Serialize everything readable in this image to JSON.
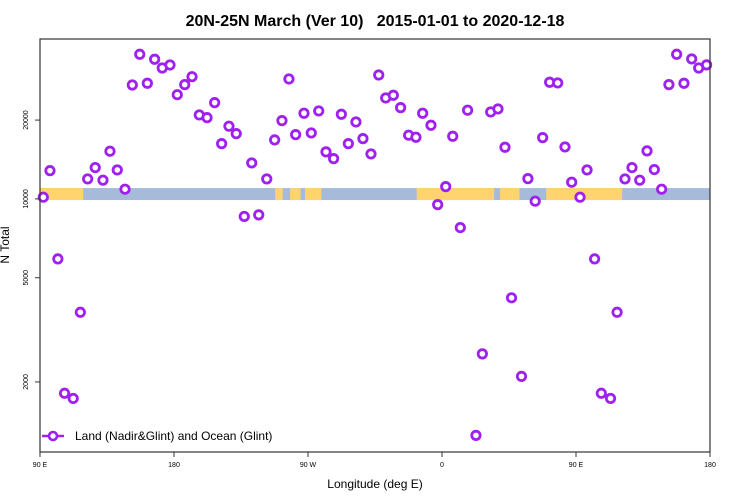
{
  "chart_data": {
    "type": "scatter",
    "title": "20N-25N March (Ver 10)   2015-01-01 to 2020-12-18",
    "xlabel": "Longitude (deg E)",
    "ylabel": "N Total",
    "y_scale": "log",
    "xlim": [
      90,
      540
    ],
    "ylim": [
      1080,
      40800
    ],
    "x_note": "longitude unwrapped: 90E=90, 180=180, 90W=270, 0=360, 90E=450, 180=540",
    "x_ticks": [
      {
        "value": 90,
        "label": "90 E"
      },
      {
        "value": 180,
        "label": "180"
      },
      {
        "value": 270,
        "label": "90 W"
      },
      {
        "value": 360,
        "label": "0"
      },
      {
        "value": 450,
        "label": "90 E"
      },
      {
        "value": 540,
        "label": "180"
      }
    ],
    "y_ticks": [
      {
        "value": 2000,
        "label": "2000"
      },
      {
        "value": 5000,
        "label": "5000"
      },
      {
        "value": 10000,
        "label": "10000"
      },
      {
        "value": 20000,
        "label": "20000"
      }
    ],
    "legend": {
      "placement": "bottom-left",
      "entries": [
        {
          "label": "Land (Nadir&Glint) and Ocean (Glint)",
          "color": "#A020F0"
        }
      ]
    },
    "colors": {
      "series": "#A020F0",
      "ocean": "#A5BBD9",
      "land": "#FFD36E"
    },
    "land_mask": {
      "band_value_range": [
        9900,
        11000
      ],
      "land_segments": [
        [
          90,
          119
        ],
        [
          248,
          253
        ],
        [
          258,
          265
        ],
        [
          268,
          279
        ],
        [
          343,
          395
        ],
        [
          399,
          412
        ],
        [
          430,
          481
        ]
      ]
    },
    "series": [
      {
        "name": "Land (Nadir&Glint) and Ocean (Glint)",
        "points": [
          [
            92.2,
            10150
          ],
          [
            96.7,
            12820
          ],
          [
            102.0,
            5900
          ],
          [
            106.5,
            1810
          ],
          [
            112.3,
            1730
          ],
          [
            117.1,
            3690
          ],
          [
            122.0,
            11920
          ],
          [
            127.1,
            13170
          ],
          [
            132.3,
            11790
          ],
          [
            137.0,
            15210
          ],
          [
            141.9,
            12900
          ],
          [
            147.1,
            10890
          ],
          [
            152.0,
            27230
          ],
          [
            157.0,
            35670
          ],
          [
            162.1,
            27650
          ],
          [
            167.0,
            34140
          ],
          [
            172.1,
            31620
          ],
          [
            177.3,
            32470
          ],
          [
            182.2,
            25000
          ],
          [
            187.2,
            27320
          ],
          [
            192.1,
            29290
          ],
          [
            197.0,
            20920
          ],
          [
            202.2,
            20430
          ],
          [
            207.3,
            23310
          ],
          [
            212.0,
            16260
          ],
          [
            216.9,
            18950
          ],
          [
            221.8,
            17750
          ],
          [
            227.2,
            8570
          ],
          [
            232.2,
            13720
          ],
          [
            236.9,
            8690
          ],
          [
            242.3,
            11920
          ],
          [
            247.6,
            16800
          ],
          [
            252.5,
            19900
          ],
          [
            257.2,
            28710
          ],
          [
            261.7,
            17600
          ],
          [
            267.3,
            21240
          ],
          [
            272.2,
            17860
          ],
          [
            277.2,
            21670
          ],
          [
            282.1,
            15120
          ],
          [
            287.2,
            14250
          ],
          [
            292.4,
            21050
          ],
          [
            297.1,
            16260
          ],
          [
            302.2,
            19670
          ],
          [
            306.9,
            16990
          ],
          [
            312.3,
            14850
          ],
          [
            317.5,
            29730
          ],
          [
            322.2,
            24290
          ],
          [
            327.3,
            24880
          ],
          [
            332.2,
            22310
          ],
          [
            337.6,
            17510
          ],
          [
            342.5,
            17200
          ],
          [
            347.0,
            21240
          ],
          [
            352.6,
            19110
          ],
          [
            357.1,
            9510
          ],
          [
            362.5,
            11140
          ],
          [
            367.2,
            17350
          ],
          [
            372.3,
            7770
          ],
          [
            377.2,
            21810
          ],
          [
            382.8,
            1250
          ],
          [
            387.1,
            2560
          ],
          [
            392.7,
            21480
          ],
          [
            397.6,
            22060
          ],
          [
            402.3,
            15750
          ],
          [
            406.7,
            4190
          ],
          [
            413.4,
            2100
          ],
          [
            417.7,
            11950
          ],
          [
            422.6,
            9800
          ],
          [
            427.6,
            17140
          ],
          [
            432.3,
            27890
          ],
          [
            437.7,
            27720
          ],
          [
            442.6,
            15790
          ],
          [
            447.1,
            11580
          ],
          [
            452.7,
            10150
          ],
          [
            457.4,
            12900
          ],
          [
            462.5,
            5900
          ],
          [
            467.0,
            1810
          ],
          [
            473.2,
            1730
          ],
          [
            477.6,
            3690
          ],
          [
            482.9,
            11920
          ],
          [
            487.6,
            13170
          ],
          [
            492.8,
            11790
          ],
          [
            497.7,
            15250
          ],
          [
            502.6,
            12940
          ],
          [
            507.5,
            10890
          ],
          [
            512.4,
            27320
          ],
          [
            517.6,
            35670
          ],
          [
            522.5,
            27650
          ],
          [
            527.7,
            34240
          ],
          [
            532.4,
            31620
          ],
          [
            537.7,
            32500
          ]
        ]
      }
    ]
  }
}
